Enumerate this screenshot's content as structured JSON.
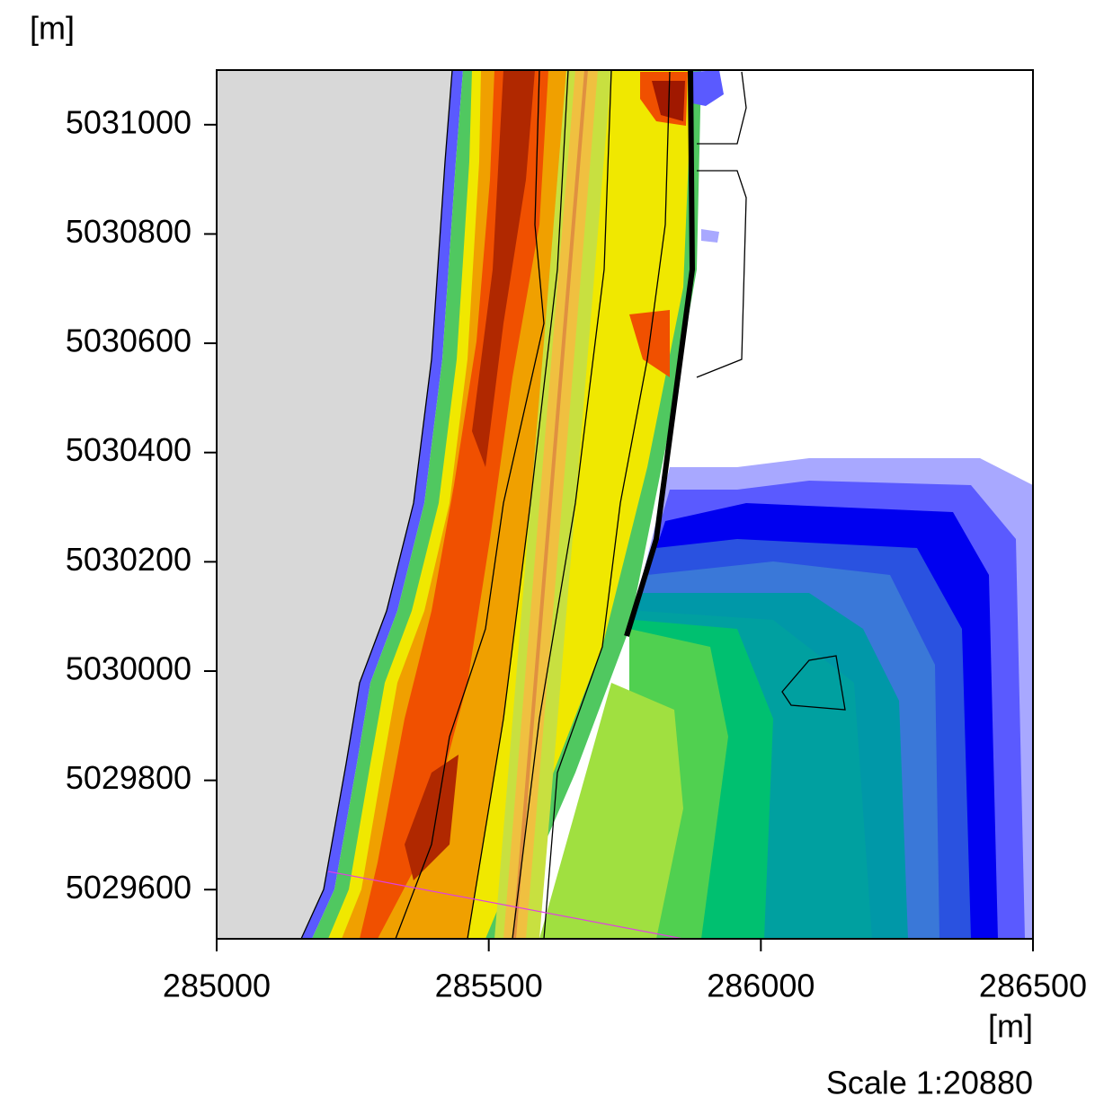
{
  "chart_data": {
    "type": "map",
    "ylabel": "[m]",
    "xlabel": "[m]",
    "xlim": [
      285000,
      286500
    ],
    "xticks": [
      285000,
      285500,
      286000,
      286500
    ],
    "ylim": [
      5029510,
      5031100
    ],
    "yticks": [
      5029600,
      5029800,
      5030000,
      5030200,
      5030400,
      5030600,
      5030800,
      5031000
    ],
    "scale": "Scale 1:20880"
  }
}
